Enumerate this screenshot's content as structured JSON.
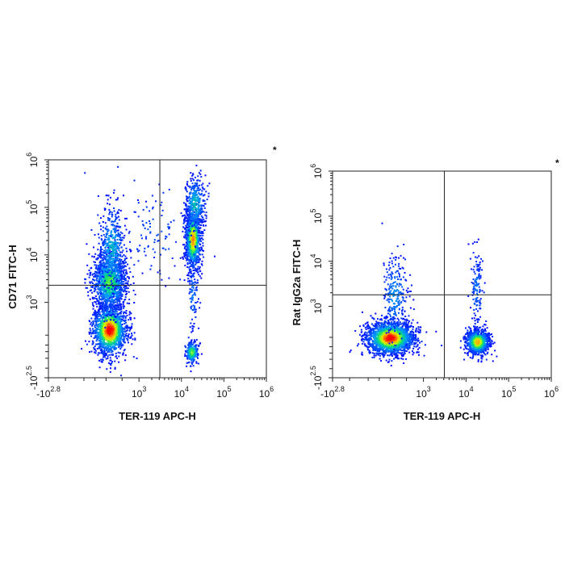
{
  "chart_data": [
    {
      "type": "scatter",
      "title": "",
      "xlabel": "TER-119 APC-H",
      "ylabel": "CD71 FITC-H",
      "corner_mark": "*",
      "x_scale": "biexponential",
      "y_scale": "biexponential",
      "xlim": [
        -631,
        1000000
      ],
      "ylim": [
        -316,
        1000000
      ],
      "x_ticks": [
        {
          "value": -631,
          "base": "-10",
          "exp": "2.8"
        },
        {
          "value": 1000,
          "base": "10",
          "exp": "3"
        },
        {
          "value": 10000,
          "base": "10",
          "exp": "4"
        },
        {
          "value": 100000,
          "base": "10",
          "exp": "5"
        },
        {
          "value": 1000000,
          "base": "10",
          "exp": "6"
        }
      ],
      "y_ticks": [
        {
          "value": -316,
          "base": "-10",
          "exp": "2.5"
        },
        {
          "value": 1000,
          "base": "10",
          "exp": "3"
        },
        {
          "value": 10000,
          "base": "10",
          "exp": "4"
        },
        {
          "value": 100000,
          "base": "10",
          "exp": "5"
        },
        {
          "value": 1000000,
          "base": "10",
          "exp": "6"
        }
      ],
      "gate": {
        "x": 3100,
        "y": 2300
      },
      "populations": [
        {
          "cx": 190,
          "cy": 270,
          "sx": 0.2,
          "sy": 0.26,
          "n": 1500,
          "peak": 1.0
        },
        {
          "cx": 190,
          "cy": 2800,
          "sx": 0.2,
          "sy": 0.32,
          "n": 1300,
          "peak": 0.55
        },
        {
          "cx": 220,
          "cy": 14000,
          "sx": 0.16,
          "sy": 0.45,
          "n": 450,
          "peak": 0.35
        },
        {
          "cx": 18000,
          "cy": 22000,
          "sx": 0.09,
          "sy": 0.32,
          "n": 1000,
          "peak": 0.85
        },
        {
          "cx": 20000,
          "cy": 120000,
          "sx": 0.12,
          "sy": 0.28,
          "n": 350,
          "peak": 0.4
        },
        {
          "cx": 17000,
          "cy": 0,
          "sx": 0.08,
          "sy": 0.12,
          "n": 220,
          "peak": 0.6
        },
        {
          "cx": 18000,
          "cy": 1500,
          "sx": 0.06,
          "sy": 0.4,
          "n": 90,
          "peak": 0.2
        },
        {
          "cx": 2500,
          "cy": 30000,
          "sx": 0.5,
          "sy": 0.6,
          "n": 120,
          "peak": 0.1
        }
      ]
    },
    {
      "type": "scatter",
      "title": "",
      "xlabel": "TER-119 APC-H",
      "ylabel": "Rat IgG2a FITC-H",
      "corner_mark": "*",
      "x_scale": "biexponential",
      "y_scale": "biexponential",
      "xlim": [
        -631,
        1000000
      ],
      "ylim": [
        -316,
        1000000
      ],
      "x_ticks": [
        {
          "value": -631,
          "base": "-10",
          "exp": "2.8"
        },
        {
          "value": 1000,
          "base": "10",
          "exp": "3"
        },
        {
          "value": 10000,
          "base": "10",
          "exp": "4"
        },
        {
          "value": 100000,
          "base": "10",
          "exp": "5"
        },
        {
          "value": 1000000,
          "base": "10",
          "exp": "6"
        }
      ],
      "y_ticks": [
        {
          "value": -316,
          "base": "-10",
          "exp": "2.5"
        },
        {
          "value": 1000,
          "base": "10",
          "exp": "3"
        },
        {
          "value": 10000,
          "base": "10",
          "exp": "4"
        },
        {
          "value": 100000,
          "base": "10",
          "exp": "5"
        },
        {
          "value": 1000000,
          "base": "10",
          "exp": "6"
        }
      ],
      "gate": {
        "x": 3100,
        "y": 1800
      },
      "populations": [
        {
          "cx": 140,
          "cy": 200,
          "sx": 0.28,
          "sy": 0.18,
          "n": 2000,
          "peak": 1.0
        },
        {
          "cx": 200,
          "cy": 1800,
          "sx": 0.15,
          "sy": 0.45,
          "n": 250,
          "peak": 0.25
        },
        {
          "cx": 18000,
          "cy": 150,
          "sx": 0.14,
          "sy": 0.14,
          "n": 900,
          "peak": 0.8
        },
        {
          "cx": 17000,
          "cy": 2500,
          "sx": 0.07,
          "sy": 0.4,
          "n": 130,
          "peak": 0.2
        }
      ]
    }
  ]
}
